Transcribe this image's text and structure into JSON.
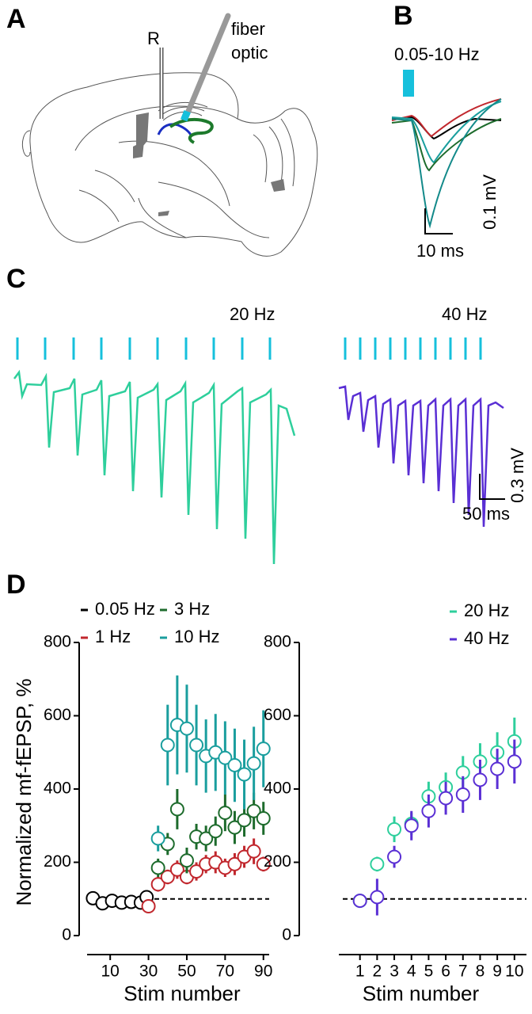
{
  "panels": {
    "A": {
      "label": "A",
      "electrode": "R",
      "fiber": [
        "fiber",
        "optic"
      ]
    },
    "B": {
      "label": "B",
      "stim": "0.05-10 Hz",
      "scale_y": "0.1 mV",
      "scale_x": "10 ms"
    },
    "C": {
      "label": "C",
      "left": "20 Hz",
      "right": "40 Hz",
      "scale_y": "0.3 mV",
      "scale_x": "50 ms"
    },
    "D": {
      "label": "D"
    }
  },
  "chart_data": [
    {
      "type": "scatter",
      "ylabel": "Normalized mf-fEPSP, %",
      "xlabel": "Stim number",
      "xlim": [
        0,
        93
      ],
      "xticks": [
        10,
        30,
        50,
        70,
        90
      ],
      "ylim": [
        0,
        800
      ],
      "yticks": [
        0,
        200,
        400,
        600,
        800
      ],
      "reference_line": 100,
      "legend_columns": 2,
      "series": [
        {
          "name": "0.05 Hz",
          "color": "#000000",
          "x": [
            1,
            6,
            11,
            16,
            21,
            26,
            29
          ],
          "values": [
            102,
            88,
            95,
            90,
            92,
            90,
            105
          ]
        },
        {
          "name": "1 Hz",
          "color": "#c1272d",
          "x": [
            30,
            35,
            40,
            45,
            50,
            55,
            60,
            65,
            70,
            75,
            80,
            85,
            90
          ],
          "values": [
            80,
            140,
            160,
            180,
            160,
            175,
            195,
            200,
            185,
            195,
            215,
            230,
            195
          ],
          "errors": [
            10,
            20,
            20,
            25,
            20,
            25,
            25,
            30,
            25,
            30,
            30,
            35,
            20
          ]
        },
        {
          "name": "3 Hz",
          "color": "#1d6b2c",
          "x": [
            35,
            40,
            45,
            50,
            55,
            60,
            65,
            70,
            75,
            80,
            85,
            90
          ],
          "values": [
            185,
            250,
            345,
            205,
            270,
            265,
            285,
            335,
            295,
            315,
            340,
            320
          ],
          "errors": [
            25,
            30,
            55,
            35,
            35,
            35,
            40,
            50,
            45,
            45,
            50,
            45
          ]
        },
        {
          "name": "10 Hz",
          "color": "#1a9e9e",
          "x": [
            35,
            40,
            45,
            50,
            55,
            60,
            65,
            70,
            75,
            80,
            85,
            90
          ],
          "values": [
            265,
            520,
            575,
            565,
            520,
            490,
            500,
            485,
            465,
            440,
            470,
            510
          ],
          "errors": [
            35,
            110,
            135,
            120,
            110,
            100,
            105,
            100,
            100,
            95,
            100,
            105
          ]
        }
      ]
    },
    {
      "type": "scatter",
      "xlabel": "Stim number",
      "xlim": [
        0,
        10.7
      ],
      "xticks": [
        1,
        2,
        3,
        4,
        5,
        6,
        7,
        8,
        9,
        10
      ],
      "ylim": [
        0,
        800
      ],
      "yticks": [
        0,
        200,
        400,
        600,
        800
      ],
      "reference_line": 100,
      "legend_columns": 1,
      "series": [
        {
          "name": "20 Hz",
          "color": "#2ecf9c",
          "x": [
            1,
            2,
            3,
            4,
            5,
            6,
            7,
            8,
            9,
            10
          ],
          "values": [
            95,
            195,
            290,
            305,
            380,
            405,
            445,
            475,
            500,
            530
          ],
          "errors": [
            10,
            20,
            35,
            30,
            40,
            40,
            45,
            50,
            55,
            65
          ]
        },
        {
          "name": "40 Hz",
          "color": "#5a2fd4",
          "x": [
            1,
            2,
            3,
            4,
            5,
            6,
            7,
            8,
            9,
            10
          ],
          "values": [
            95,
            105,
            215,
            300,
            340,
            375,
            385,
            425,
            455,
            475
          ],
          "errors": [
            10,
            50,
            30,
            40,
            45,
            45,
            50,
            55,
            55,
            60
          ]
        }
      ]
    }
  ]
}
